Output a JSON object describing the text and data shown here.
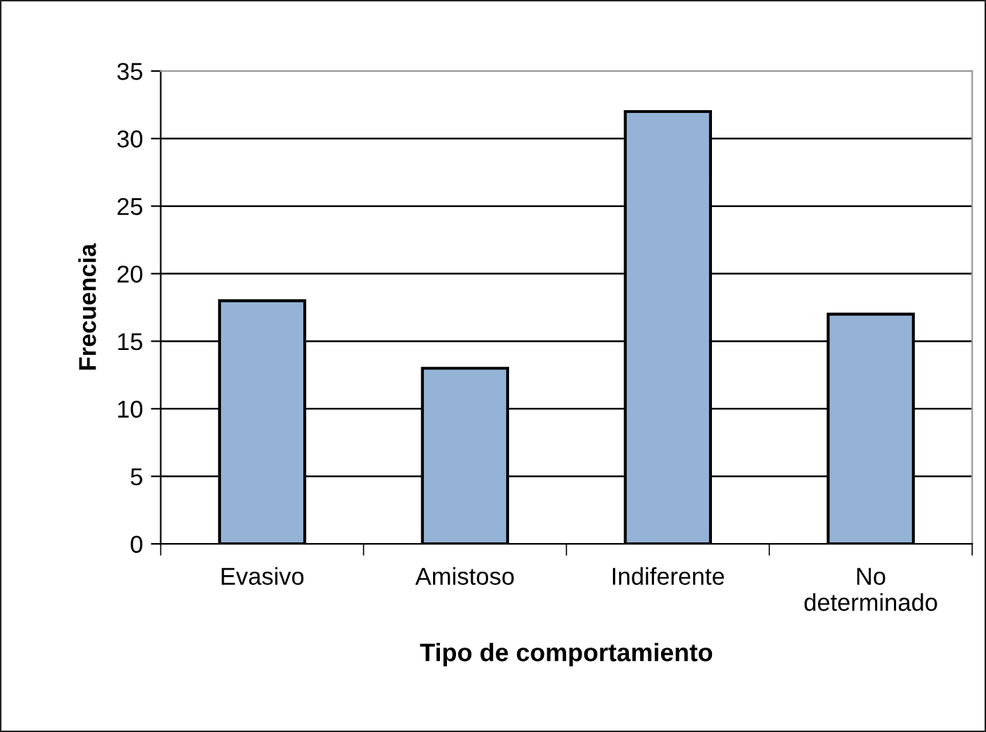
{
  "chart_data": {
    "type": "bar",
    "xlabel": "Tipo de comportamiento",
    "ylabel": "Frecuencia",
    "categories": [
      "Evasivo",
      "Amistoso",
      "Indiferente",
      "No\ndeterminado"
    ],
    "values": [
      18,
      13,
      32,
      17
    ],
    "color": "#95b3d7",
    "ylim": [
      0,
      35
    ],
    "yticks": [
      0,
      5,
      10,
      15,
      20,
      25,
      30,
      35
    ],
    "grid": "y",
    "legend": false
  }
}
